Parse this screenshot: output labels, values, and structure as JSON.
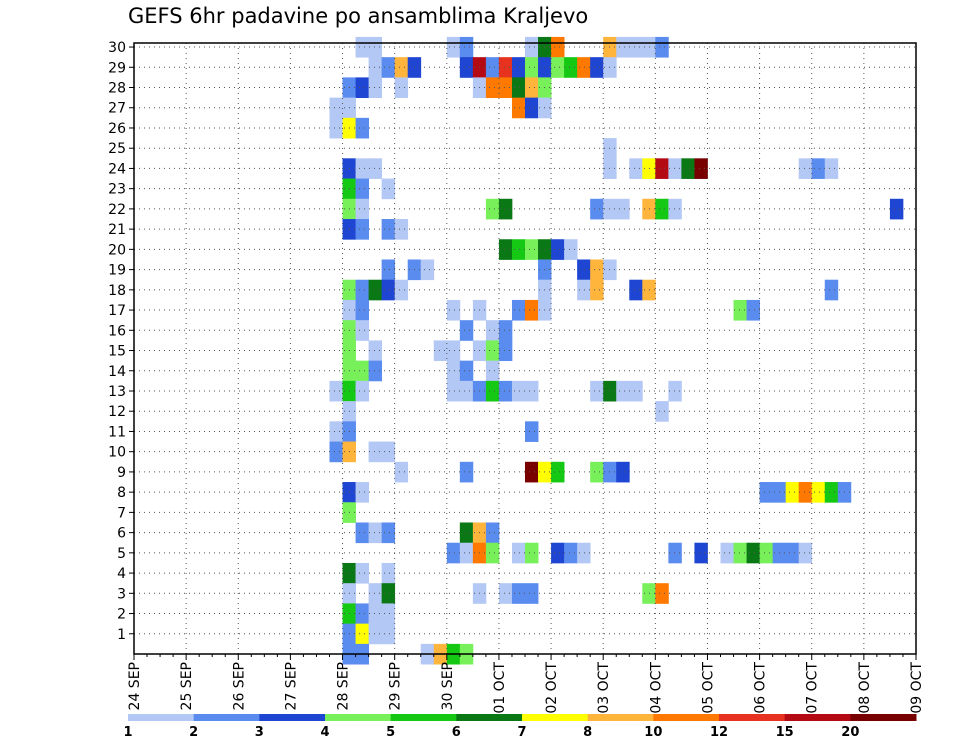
{
  "chart_data": {
    "type": "heatmap",
    "title": "GEFS 6hr padavine po ansamblima Kraljevo",
    "xlabel": "",
    "ylabel": "",
    "x_ticks": [
      "24 SEP",
      "25 SEP",
      "26 SEP",
      "27 SEP",
      "28 SEP",
      "29 SEP",
      "30 SEP",
      "01 OCT",
      "02 OCT",
      "03 OCT",
      "04 OCT",
      "05 OCT",
      "06 OCT",
      "07 OCT",
      "08 OCT",
      "09 OCT"
    ],
    "y_ticks": [
      1,
      2,
      3,
      4,
      5,
      6,
      7,
      8,
      9,
      10,
      11,
      12,
      13,
      14,
      15,
      16,
      17,
      18,
      19,
      20,
      21,
      22,
      23,
      24,
      25,
      26,
      27,
      28,
      29,
      30
    ],
    "x_range_days": [
      0,
      15
    ],
    "y_range": [
      0,
      30
    ],
    "steps_per_day": 4,
    "grid": "dotted",
    "colorbar": {
      "labels": [
        "1",
        "2",
        "3",
        "4",
        "5",
        "6",
        "7",
        "8",
        "10",
        "12",
        "15",
        "20"
      ],
      "colors": [
        "#b4c8f5",
        "#5a8cf0",
        "#1e46d2",
        "#78f05a",
        "#14c814",
        "#0a7814",
        "#ffff00",
        "#ffb43c",
        "#ff7800",
        "#e6321e",
        "#b40a14",
        "#780000"
      ]
    },
    "cells": [
      [
        30,
        "28 SEP 06",
        1
      ],
      [
        30,
        "28 SEP 12",
        1
      ],
      [
        30,
        "30 SEP 00",
        1
      ],
      [
        30,
        "30 SEP 06",
        2
      ],
      [
        30,
        "01 OCT 12",
        1
      ],
      [
        30,
        "01 OCT 18",
        6
      ],
      [
        30,
        "02 OCT 00",
        9
      ],
      [
        30,
        "03 OCT 00",
        8
      ],
      [
        30,
        "03 OCT 06",
        1
      ],
      [
        30,
        "03 OCT 12",
        1
      ],
      [
        30,
        "03 OCT 18",
        1
      ],
      [
        30,
        "04 OCT 00",
        2
      ],
      [
        29,
        "28 SEP 12",
        1
      ],
      [
        29,
        "28 SEP 18",
        2
      ],
      [
        29,
        "29 SEP 00",
        8
      ],
      [
        29,
        "29 SEP 06",
        3
      ],
      [
        29,
        "30 SEP 06",
        3
      ],
      [
        29,
        "30 SEP 12",
        11
      ],
      [
        29,
        "30 SEP 18",
        2
      ],
      [
        29,
        "01 OCT 00",
        10
      ],
      [
        29,
        "01 OCT 06",
        3
      ],
      [
        29,
        "01 OCT 12",
        4
      ],
      [
        29,
        "01 OCT 18",
        3
      ],
      [
        29,
        "02 OCT 00",
        4
      ],
      [
        29,
        "02 OCT 06",
        5
      ],
      [
        29,
        "02 OCT 12",
        9
      ],
      [
        29,
        "02 OCT 18",
        3
      ],
      [
        29,
        "03 OCT 00",
        1
      ],
      [
        28,
        "28 SEP 00",
        2
      ],
      [
        28,
        "28 SEP 06",
        3
      ],
      [
        28,
        "28 SEP 12",
        1
      ],
      [
        28,
        "29 SEP 00",
        1
      ],
      [
        28,
        "30 SEP 12",
        1
      ],
      [
        28,
        "30 SEP 18",
        9
      ],
      [
        28,
        "01 OCT 00",
        9
      ],
      [
        28,
        "01 OCT 06",
        6
      ],
      [
        28,
        "01 OCT 12",
        8
      ],
      [
        28,
        "01 OCT 18",
        4
      ],
      [
        27,
        "27 SEP 18",
        1
      ],
      [
        27,
        "28 SEP 00",
        1
      ],
      [
        27,
        "01 OCT 06",
        9
      ],
      [
        27,
        "01 OCT 12",
        3
      ],
      [
        27,
        "01 OCT 18",
        1
      ],
      [
        26,
        "27 SEP 18",
        1
      ],
      [
        26,
        "28 SEP 00",
        7
      ],
      [
        26,
        "28 SEP 06",
        2
      ],
      [
        25,
        "03 OCT 00",
        1
      ],
      [
        24,
        "28 SEP 00",
        3
      ],
      [
        24,
        "28 SEP 06",
        1
      ],
      [
        24,
        "28 SEP 12",
        1
      ],
      [
        24,
        "03 OCT 00",
        1
      ],
      [
        24,
        "03 OCT 12",
        1
      ],
      [
        24,
        "03 OCT 18",
        7
      ],
      [
        24,
        "04 OCT 00",
        11
      ],
      [
        24,
        "04 OCT 06",
        1
      ],
      [
        24,
        "04 OCT 12",
        6
      ],
      [
        24,
        "04 OCT 18",
        12
      ],
      [
        24,
        "06 OCT 18",
        1
      ],
      [
        24,
        "07 OCT 00",
        2
      ],
      [
        24,
        "07 OCT 06",
        1
      ],
      [
        23,
        "28 SEP 00",
        5
      ],
      [
        23,
        "28 SEP 06",
        2
      ],
      [
        23,
        "28 SEP 18",
        1
      ],
      [
        22,
        "28 SEP 00",
        4
      ],
      [
        22,
        "28 SEP 06",
        1
      ],
      [
        22,
        "30 SEP 18",
        4
      ],
      [
        22,
        "01 OCT 00",
        6
      ],
      [
        22,
        "02 OCT 18",
        2
      ],
      [
        22,
        "03 OCT 00",
        1
      ],
      [
        22,
        "03 OCT 06",
        1
      ],
      [
        22,
        "03 OCT 18",
        8
      ],
      [
        22,
        "04 OCT 00",
        5
      ],
      [
        22,
        "04 OCT 06",
        1
      ],
      [
        22,
        "08 OCT 12",
        3
      ],
      [
        21,
        "28 SEP 00",
        3
      ],
      [
        21,
        "28 SEP 06",
        2
      ],
      [
        21,
        "28 SEP 18",
        2
      ],
      [
        21,
        "29 SEP 00",
        1
      ],
      [
        20,
        "01 OCT 00",
        6
      ],
      [
        20,
        "01 OCT 06",
        5
      ],
      [
        20,
        "01 OCT 12",
        4
      ],
      [
        20,
        "01 OCT 18",
        6
      ],
      [
        20,
        "02 OCT 00",
        3
      ],
      [
        20,
        "02 OCT 06",
        1
      ],
      [
        19,
        "28 SEP 18",
        2
      ],
      [
        19,
        "29 SEP 06",
        2
      ],
      [
        19,
        "29 SEP 12",
        1
      ],
      [
        19,
        "01 OCT 18",
        2
      ],
      [
        19,
        "02 OCT 12",
        3
      ],
      [
        19,
        "02 OCT 18",
        8
      ],
      [
        19,
        "03 OCT 00",
        1
      ],
      [
        18,
        "28 SEP 00",
        4
      ],
      [
        18,
        "28 SEP 06",
        2
      ],
      [
        18,
        "28 SEP 12",
        6
      ],
      [
        18,
        "28 SEP 18",
        3
      ],
      [
        18,
        "29 SEP 00",
        1
      ],
      [
        18,
        "01 OCT 18",
        1
      ],
      [
        18,
        "02 OCT 12",
        1
      ],
      [
        18,
        "02 OCT 18",
        8
      ],
      [
        18,
        "03 OCT 12",
        3
      ],
      [
        18,
        "03 OCT 18",
        8
      ],
      [
        18,
        "07 OCT 06",
        2
      ],
      [
        17,
        "28 SEP 00",
        1
      ],
      [
        17,
        "28 SEP 06",
        2
      ],
      [
        17,
        "30 SEP 00",
        1
      ],
      [
        17,
        "30 SEP 12",
        1
      ],
      [
        17,
        "01 OCT 06",
        2
      ],
      [
        17,
        "01 OCT 12",
        9
      ],
      [
        17,
        "01 OCT 18",
        1
      ],
      [
        17,
        "05 OCT 12",
        4
      ],
      [
        17,
        "05 OCT 18",
        2
      ],
      [
        16,
        "28 SEP 00",
        4
      ],
      [
        16,
        "28 SEP 06",
        1
      ],
      [
        16,
        "30 SEP 06",
        2
      ],
      [
        16,
        "30 SEP 18",
        1
      ],
      [
        16,
        "01 OCT 00",
        2
      ],
      [
        15,
        "28 SEP 00",
        4
      ],
      [
        15,
        "28 SEP 12",
        1
      ],
      [
        15,
        "29 SEP 18",
        1
      ],
      [
        15,
        "30 SEP 00",
        1
      ],
      [
        15,
        "30 SEP 12",
        1
      ],
      [
        15,
        "30 SEP 18",
        4
      ],
      [
        15,
        "01 OCT 00",
        2
      ],
      [
        14,
        "28 SEP 00",
        4
      ],
      [
        14,
        "28 SEP 06",
        4
      ],
      [
        14,
        "28 SEP 12",
        2
      ],
      [
        14,
        "30 SEP 00",
        1
      ],
      [
        14,
        "30 SEP 06",
        2
      ],
      [
        14,
        "30 SEP 18",
        1
      ],
      [
        13,
        "27 SEP 18",
        1
      ],
      [
        13,
        "28 SEP 00",
        5
      ],
      [
        13,
        "28 SEP 06",
        1
      ],
      [
        13,
        "30 SEP 00",
        1
      ],
      [
        13,
        "30 SEP 06",
        1
      ],
      [
        13,
        "30 SEP 12",
        2
      ],
      [
        13,
        "30 SEP 18",
        5
      ],
      [
        13,
        "01 OCT 00",
        2
      ],
      [
        13,
        "01 OCT 06",
        1
      ],
      [
        13,
        "01 OCT 12",
        1
      ],
      [
        13,
        "02 OCT 18",
        1
      ],
      [
        13,
        "03 OCT 00",
        6
      ],
      [
        13,
        "03 OCT 06",
        1
      ],
      [
        13,
        "03 OCT 12",
        1
      ],
      [
        13,
        "04 OCT 06",
        1
      ],
      [
        12,
        "28 SEP 00",
        1
      ],
      [
        12,
        "04 OCT 00",
        1
      ],
      [
        11,
        "27 SEP 18",
        1
      ],
      [
        11,
        "28 SEP 00",
        2
      ],
      [
        11,
        "01 OCT 12",
        2
      ],
      [
        10,
        "27 SEP 18",
        2
      ],
      [
        10,
        "28 SEP 00",
        8
      ],
      [
        10,
        "28 SEP 12",
        1
      ],
      [
        10,
        "28 SEP 18",
        1
      ],
      [
        9,
        "29 SEP 00",
        1
      ],
      [
        9,
        "30 SEP 06",
        2
      ],
      [
        9,
        "01 OCT 12",
        12
      ],
      [
        9,
        "01 OCT 18",
        7
      ],
      [
        9,
        "02 OCT 00",
        5
      ],
      [
        9,
        "02 OCT 18",
        4
      ],
      [
        9,
        "03 OCT 00",
        2
      ],
      [
        9,
        "03 OCT 06",
        3
      ],
      [
        8,
        "28 SEP 00",
        3
      ],
      [
        8,
        "28 SEP 06",
        1
      ],
      [
        8,
        "06 OCT 00",
        2
      ],
      [
        8,
        "06 OCT 06",
        2
      ],
      [
        8,
        "06 OCT 12",
        7
      ],
      [
        8,
        "06 OCT 18",
        9
      ],
      [
        8,
        "07 OCT 00",
        7
      ],
      [
        8,
        "07 OCT 06",
        5
      ],
      [
        8,
        "07 OCT 12",
        2
      ],
      [
        7,
        "28 SEP 00",
        4
      ],
      [
        6,
        "28 SEP 06",
        2
      ],
      [
        6,
        "28 SEP 12",
        1
      ],
      [
        6,
        "28 SEP 18",
        2
      ],
      [
        6,
        "30 SEP 06",
        6
      ],
      [
        6,
        "30 SEP 12",
        8
      ],
      [
        6,
        "30 SEP 18",
        2
      ],
      [
        5,
        "30 SEP 00",
        2
      ],
      [
        5,
        "30 SEP 06",
        1
      ],
      [
        5,
        "30 SEP 12",
        9
      ],
      [
        5,
        "30 SEP 18",
        4
      ],
      [
        5,
        "01 OCT 06",
        1
      ],
      [
        5,
        "01 OCT 12",
        4
      ],
      [
        5,
        "02 OCT 00",
        3
      ],
      [
        5,
        "02 OCT 06",
        2
      ],
      [
        5,
        "02 OCT 12",
        1
      ],
      [
        5,
        "04 OCT 06",
        2
      ],
      [
        5,
        "04 OCT 18",
        3
      ],
      [
        5,
        "05 OCT 06",
        1
      ],
      [
        5,
        "05 OCT 12",
        4
      ],
      [
        5,
        "05 OCT 18",
        6
      ],
      [
        5,
        "06 OCT 00",
        4
      ],
      [
        5,
        "06 OCT 06",
        2
      ],
      [
        5,
        "06 OCT 12",
        2
      ],
      [
        5,
        "06 OCT 18",
        1
      ],
      [
        4,
        "28 SEP 00",
        6
      ],
      [
        4,
        "28 SEP 06",
        1
      ],
      [
        4,
        "28 SEP 18",
        1
      ],
      [
        3,
        "28 SEP 00",
        1
      ],
      [
        3,
        "28 SEP 12",
        1
      ],
      [
        3,
        "28 SEP 18",
        6
      ],
      [
        3,
        "30 SEP 12",
        1
      ],
      [
        3,
        "01 OCT 00",
        1
      ],
      [
        3,
        "01 OCT 06",
        2
      ],
      [
        3,
        "01 OCT 12",
        2
      ],
      [
        3,
        "03 OCT 18",
        4
      ],
      [
        3,
        "04 OCT 00",
        9
      ],
      [
        2,
        "28 SEP 00",
        5
      ],
      [
        2,
        "28 SEP 06",
        2
      ],
      [
        2,
        "28 SEP 12",
        1
      ],
      [
        2,
        "28 SEP 18",
        1
      ],
      [
        1,
        "28 SEP 00",
        2
      ],
      [
        1,
        "28 SEP 06",
        7
      ],
      [
        1,
        "28 SEP 12",
        1
      ],
      [
        1,
        "28 SEP 18",
        1
      ],
      [
        0,
        "28 SEP 00",
        2
      ],
      [
        0,
        "28 SEP 06",
        2
      ],
      [
        0,
        "29 SEP 12",
        1
      ],
      [
        0,
        "29 SEP 18",
        8
      ],
      [
        0,
        "30 SEP 00",
        5
      ],
      [
        0,
        "30 SEP 06",
        4
      ]
    ]
  }
}
